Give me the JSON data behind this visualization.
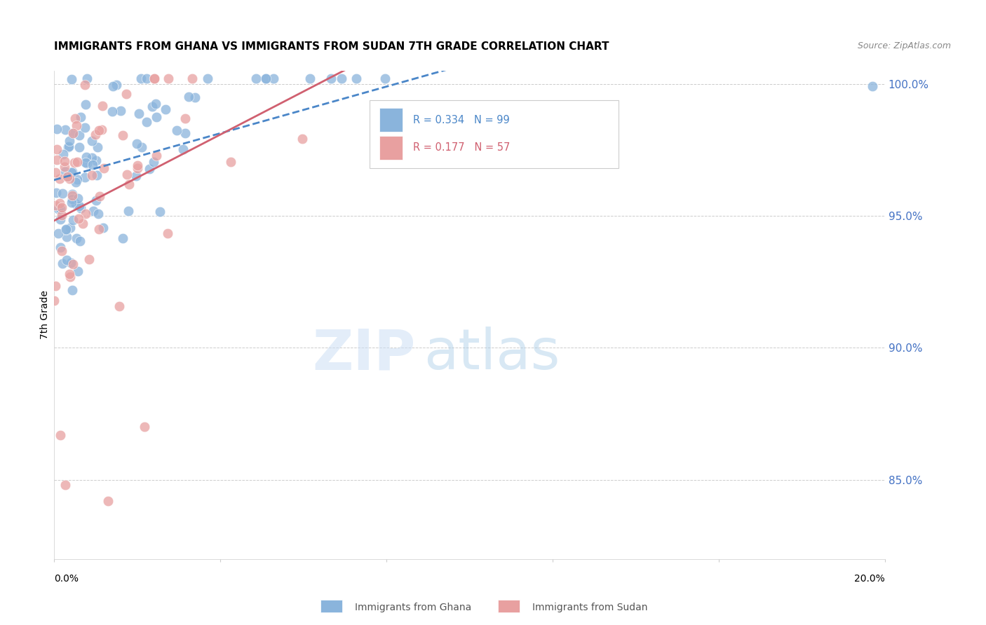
{
  "title": "IMMIGRANTS FROM GHANA VS IMMIGRANTS FROM SUDAN 7TH GRADE CORRELATION CHART",
  "source": "Source: ZipAtlas.com",
  "ylabel": "7th Grade",
  "legend_ghana_r": "R = 0.334",
  "legend_ghana_n": "N = 99",
  "legend_sudan_r": "R = 0.177",
  "legend_sudan_n": "N = 57",
  "ghana_color": "#8ab4dc",
  "sudan_color": "#e8a0a0",
  "ghana_line_color": "#4a86c8",
  "sudan_line_color": "#d06070",
  "watermark_zip": "ZIP",
  "watermark_atlas": "atlas",
  "xlim": [
    0.0,
    0.2
  ],
  "ylim": [
    0.82,
    1.005
  ],
  "yticks": [
    0.85,
    0.9,
    0.95,
    1.0
  ],
  "yticklabels": [
    "85.0%",
    "90.0%",
    "95.0%",
    "100.0%"
  ],
  "right_tick_color": "#4472c4",
  "bottom_legend_ghana": "Immigrants from Ghana",
  "bottom_legend_sudan": "Immigrants from Sudan"
}
